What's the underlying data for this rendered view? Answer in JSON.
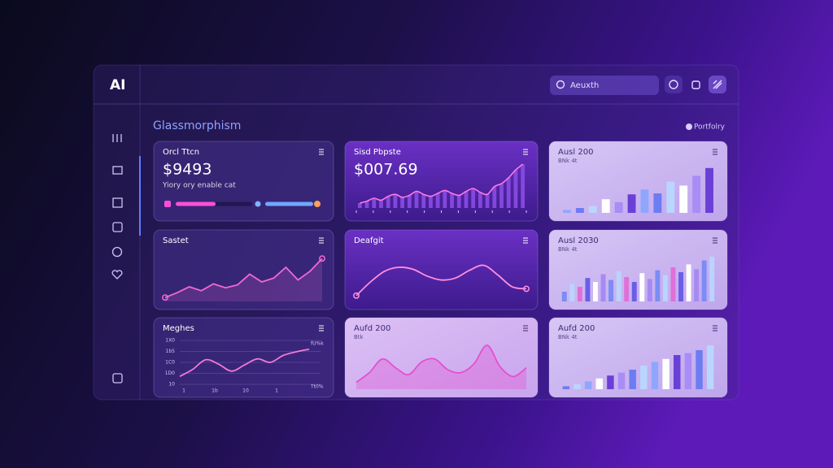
{
  "brand": "AI",
  "search": {
    "placeholder": "Aeuxth"
  },
  "header": {
    "title": "Glassmorphism",
    "action": "Portfolry"
  },
  "cards": [
    {
      "title": "Orcl Ttcn",
      "value": "$9493",
      "subtitle": "Yiory ory enable cat",
      "style": "dark"
    },
    {
      "title": "Sisd Pbpste",
      "value": "$007.69",
      "style": "purple",
      "chart": {
        "type": "bar-line",
        "ylim": [
          0,
          100
        ],
        "color": "#8d4fe6",
        "line_color": "#ff7ae0",
        "values": [
          10,
          14,
          20,
          16,
          24,
          28,
          22,
          26,
          34,
          28,
          24,
          30,
          36,
          30,
          26,
          34,
          40,
          32,
          28,
          44,
          50,
          62,
          78,
          90
        ]
      }
    },
    {
      "title": "Ausl 200",
      "subtitle": "BNk 4t",
      "style": "light",
      "chart": {
        "type": "bar",
        "ylim": [
          0,
          100
        ],
        "colors": [
          "#8fa6ff",
          "#6c7cf2",
          "#b9d6ff",
          "#ffffff",
          "#a98cf5",
          "#6a3fd6"
        ],
        "values": [
          6,
          10,
          14,
          28,
          22,
          38,
          48,
          40,
          64,
          56,
          76,
          92
        ]
      }
    },
    {
      "title": "Sastet",
      "style": "dark",
      "chart": {
        "type": "line",
        "ylim": [
          0,
          100
        ],
        "color": "#f06ad4",
        "fill": true,
        "end_markers": true,
        "values": [
          8,
          18,
          30,
          22,
          36,
          28,
          34,
          56,
          40,
          48,
          70,
          44,
          62,
          88
        ]
      }
    },
    {
      "title": "Deafgit",
      "style": "purple",
      "chart": {
        "type": "line",
        "ylim": [
          0,
          100
        ],
        "color": "#ff8fe0",
        "smooth": true,
        "end_markers": true,
        "values": [
          12,
          40,
          62,
          70,
          66,
          52,
          44,
          48,
          64,
          74,
          54,
          30,
          26
        ]
      }
    },
    {
      "title": "Ausl 2030",
      "subtitle": "BNk 4t",
      "style": "light",
      "chart": {
        "type": "bar",
        "ylim": [
          0,
          100
        ],
        "colors": [
          "#7b8cf5",
          "#b8d4ff",
          "#e070d8",
          "#6a5ee8",
          "#ffffff",
          "#a58af3"
        ],
        "values": [
          20,
          36,
          30,
          48,
          40,
          56,
          44,
          62,
          50,
          40,
          58,
          46,
          64,
          54,
          70,
          60,
          76,
          66,
          84,
          92
        ]
      }
    },
    {
      "title": "Meghes",
      "style": "dark",
      "chart": {
        "type": "line",
        "ylim": [
          0,
          100
        ],
        "color": "#f07ad8",
        "smooth": true,
        "values": [
          18,
          34,
          56,
          46,
          30,
          44,
          58,
          50,
          66,
          74,
          80
        ],
        "y_labels": [
          "1X0",
          "1b5",
          "1C0",
          "1D0",
          "10"
        ],
        "x_labels": [
          "1",
          "1b",
          "10",
          "1"
        ],
        "annotations": [
          "fU%k",
          "Tt0%"
        ]
      }
    },
    {
      "title": "Aufd 200",
      "subtitle": "Btk",
      "style": "pink",
      "chart": {
        "type": "line",
        "ylim": [
          0,
          100
        ],
        "color": "#e64fd0",
        "smooth": true,
        "fill": true,
        "values": [
          14,
          34,
          62,
          44,
          30,
          56,
          62,
          40,
          34,
          52,
          90,
          46,
          26,
          44
        ]
      }
    },
    {
      "title": "Aufd 200",
      "subtitle": "BNk 4t",
      "style": "light",
      "chart": {
        "type": "bar",
        "ylim": [
          0,
          100
        ],
        "colors": [
          "#6c7cf2",
          "#b9d6ff",
          "#8fa6ff",
          "#ffffff",
          "#6a3fd6",
          "#a98cf5"
        ],
        "values": [
          6,
          10,
          16,
          22,
          28,
          34,
          40,
          48,
          56,
          62,
          70,
          74,
          80,
          90
        ]
      }
    }
  ]
}
